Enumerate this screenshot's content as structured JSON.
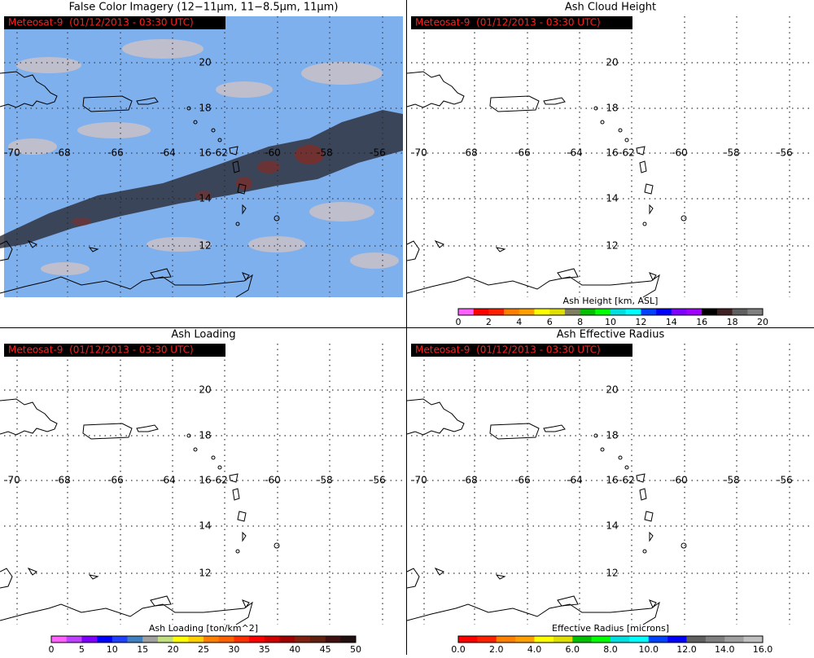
{
  "panels": [
    {
      "title": "False Color Imagery (12−11μm, 11−8.5μm, 11μm)",
      "badge": "Meteosat-9  (01/12/2013 - 03:30 UTC)"
    },
    {
      "title": "Ash Cloud Height",
      "badge": "Meteosat-9  (01/12/2013 - 03:30 UTC)",
      "colorbar": {
        "label": "Ash Height [km, ASL]",
        "ticks": [
          "0",
          "2",
          "4",
          "6",
          "8",
          "10",
          "12",
          "14",
          "16",
          "18",
          "20"
        ],
        "colors": [
          "#ff60ff",
          "#ff0000",
          "#ff2000",
          "#ff8000",
          "#ffa000",
          "#ffff00",
          "#e0e000",
          "#808060",
          "#00c000",
          "#00ff00",
          "#00e0e0",
          "#00ffff",
          "#0040ff",
          "#0000ff",
          "#8000ff",
          "#a000ff",
          "#000000",
          "#402020",
          "#606060",
          "#808080"
        ]
      }
    },
    {
      "title": "Ash Loading",
      "badge": "Meteosat-9  (01/12/2013 - 03:30 UTC)",
      "colorbar": {
        "label": "Ash Loading [ton/km^2]",
        "ticks": [
          "0",
          "5",
          "10",
          "15",
          "20",
          "25",
          "30",
          "35",
          "40",
          "45",
          "50"
        ],
        "colors": [
          "#ff60ff",
          "#c040ff",
          "#8000ff",
          "#0000ff",
          "#2040ff",
          "#4080c0",
          "#a0a0a0",
          "#c0e080",
          "#ffff00",
          "#ffd000",
          "#ff8000",
          "#ff6000",
          "#ff3000",
          "#ff0000",
          "#d00000",
          "#a00000",
          "#802010",
          "#602010",
          "#401010",
          "#201010"
        ]
      }
    },
    {
      "title": "Ash Effective Radius",
      "badge": "Meteosat-9  (01/12/2013 - 03:30 UTC)",
      "colorbar": {
        "label": "Effective Radius [microns]",
        "ticks": [
          "0.0",
          "2.0",
          "4.0",
          "6.0",
          "8.0",
          "10.0",
          "12.0",
          "14.0",
          "16.0"
        ],
        "colors": [
          "#ff0000",
          "#ff2000",
          "#ff8000",
          "#ffa000",
          "#ffff00",
          "#e0e000",
          "#00c000",
          "#00ff00",
          "#00e0e0",
          "#00ffff",
          "#0040ff",
          "#0000ff",
          "#606060",
          "#808080",
          "#a0a0a0",
          "#c0c0c0"
        ]
      }
    }
  ],
  "latitude_labels": [
    "20",
    "18",
    "16",
    "14",
    "12"
  ],
  "longitude_labels": [
    "-70",
    "-68",
    "-66",
    "-64",
    "-62",
    "-60",
    "-58",
    "-56"
  ]
}
